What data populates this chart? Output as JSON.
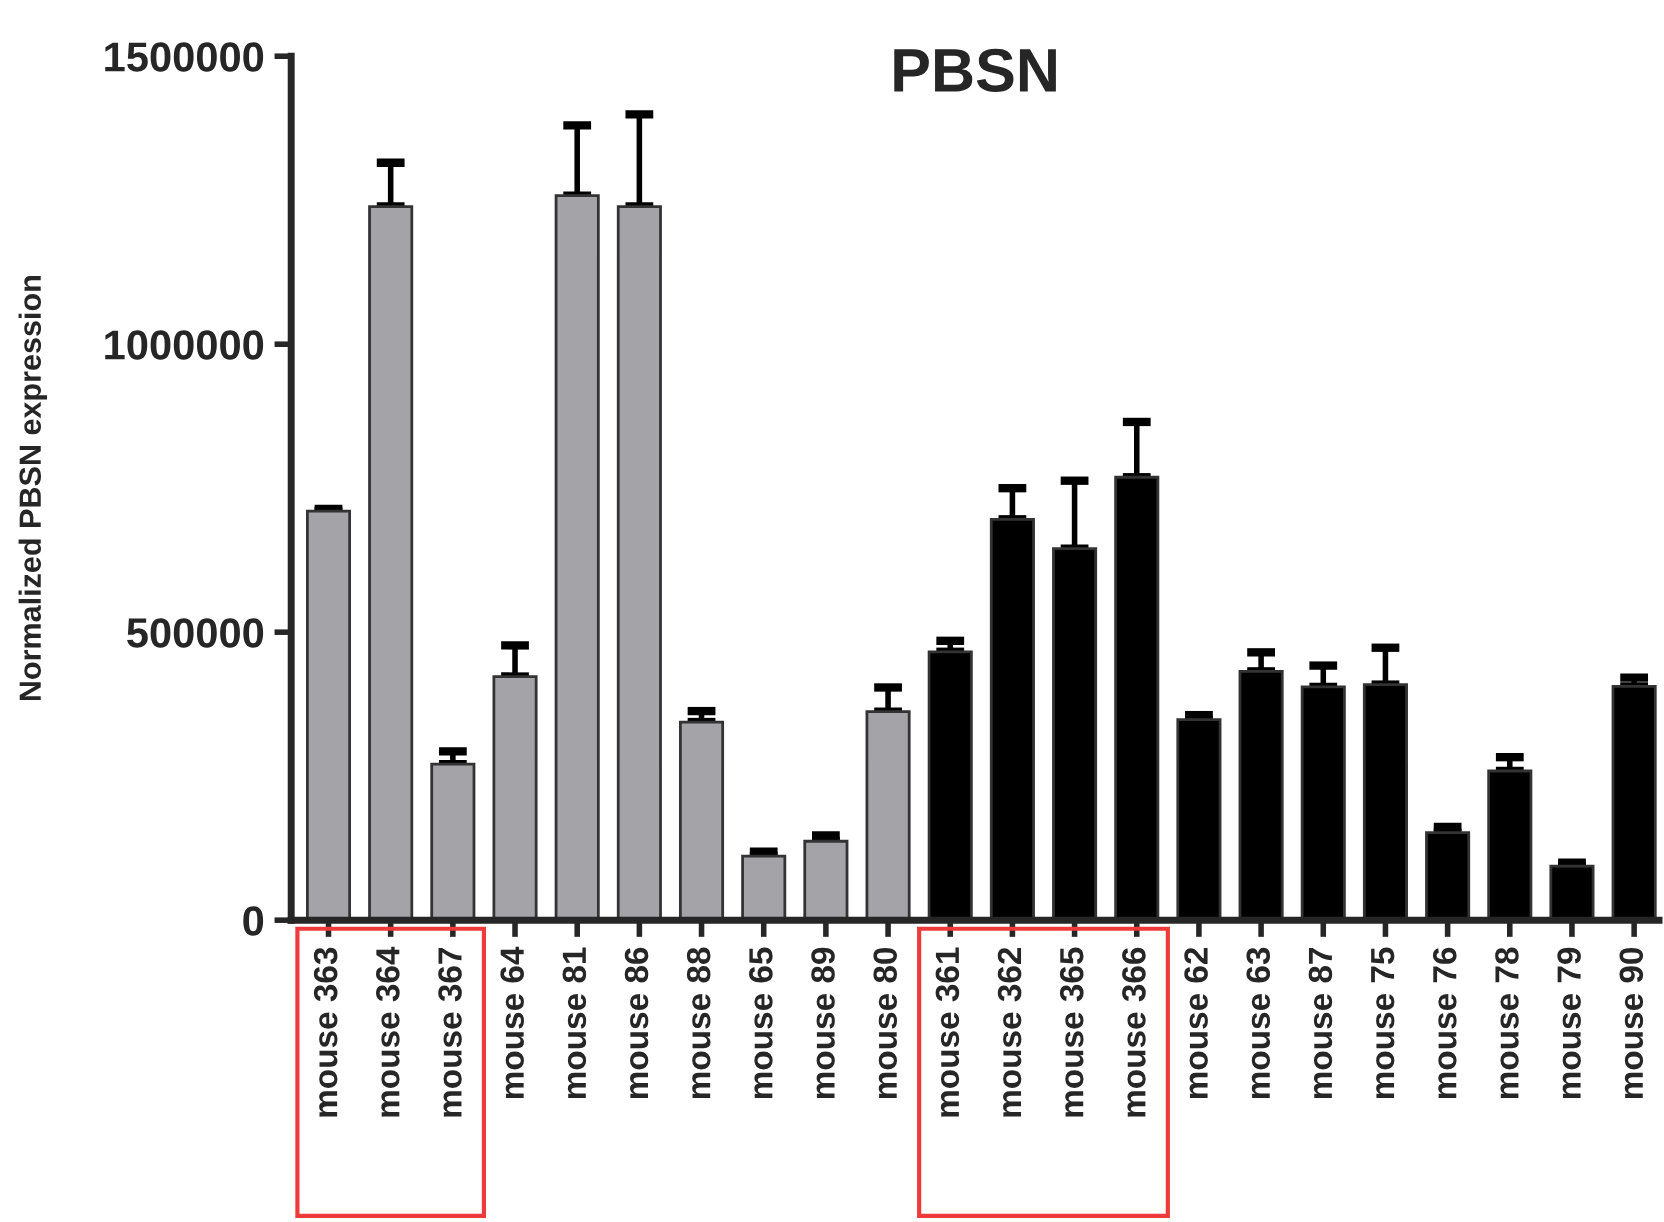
{
  "chart_data": {
    "type": "bar",
    "title": "PBSN",
    "ylabel": "Normalized PBSN expression",
    "categories": [
      "mouse 363",
      "mouse 364",
      "mouse 367",
      "mouse 64",
      "mouse 81",
      "mouse 86",
      "mouse 88",
      "mouse 65",
      "mouse 89",
      "mouse 80",
      "mouse 361",
      "mouse 362",
      "mouse 365",
      "mouse 366",
      "mouse 62",
      "mouse 63",
      "mouse 87",
      "mouse 75",
      "mouse 76",
      "mouse 78",
      "mouse 79",
      "mouse 90"
    ],
    "values": [
      710000,
      1239000,
      271000,
      423000,
      1258000,
      1239000,
      344000,
      111000,
      137000,
      362000,
      466000,
      696000,
      645000,
      769000,
      348000,
      432000,
      405000,
      409000,
      152000,
      259000,
      94000,
      406000
    ],
    "errors": [
      [
        710000,
        714000
      ],
      [
        1239000,
        1315000
      ],
      [
        271000,
        293000
      ],
      [
        423000,
        477000
      ],
      [
        1258000,
        1380000
      ],
      [
        1239000,
        1399000
      ],
      [
        344000,
        363000
      ],
      [
        111000,
        119000
      ],
      [
        137000,
        147000
      ],
      [
        362000,
        404000
      ],
      [
        466000,
        485000
      ],
      [
        696000,
        750000
      ],
      [
        645000,
        763000
      ],
      [
        769000,
        865000
      ],
      [
        348000,
        356000
      ],
      [
        432000,
        465000
      ],
      [
        405000,
        442000
      ],
      [
        409000,
        473000
      ],
      [
        152000,
        162000
      ],
      [
        259000,
        283000
      ],
      [
        94000,
        100000
      ],
      [
        406000,
        421000
      ]
    ],
    "colors": [
      "#a3a3a8",
      "#a3a3a8",
      "#a3a3a8",
      "#a3a3a8",
      "#a3a3a8",
      "#a3a3a8",
      "#a3a3a8",
      "#a3a3a8",
      "#a3a3a8",
      "#a3a3a8",
      "#000000",
      "#000000",
      "#000000",
      "#000000",
      "#000000",
      "#000000",
      "#000000",
      "#000000",
      "#000000",
      "#000000",
      "#000000",
      "#000000"
    ],
    "ylim": [
      0,
      1500000
    ],
    "yticks": [
      0,
      500000,
      1000000,
      1500000
    ],
    "grid": false,
    "legend": false
  }
}
